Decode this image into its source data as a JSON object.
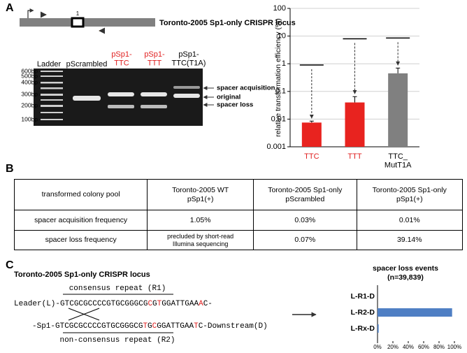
{
  "panel_labels": [
    "A",
    "B",
    "C"
  ],
  "locus": {
    "exon_label": "1",
    "title": "Toronto-2005 Sp1-only CRISPR locus"
  },
  "gel": {
    "ladder_label": "Ladder",
    "ladder_sizes": [
      "600bp",
      "500bp",
      "400bp",
      "300bp",
      "200bp",
      "100bp"
    ],
    "lanes": [
      "pScrambled",
      "pSp1-\nTTC",
      "pSp1-\nTTT",
      "pSp1-\nTTC(T1A)"
    ],
    "lane_colors": [
      "#000000",
      "#e02020",
      "#e02020",
      "#000000"
    ],
    "band_annotations": [
      "spacer acquisition",
      "original",
      "spacer loss"
    ]
  },
  "chart_data": [
    {
      "type": "bar",
      "ylabel": "relative transformation efficiency (%)",
      "categories": [
        "TTC",
        "TTT",
        "TTC_\nMutT1A"
      ],
      "category_colors": [
        "#e02020",
        "#e02020",
        "#000000"
      ],
      "values": [
        0.0075,
        0.04,
        0.45
      ],
      "errors": [
        0.001,
        0.025,
        0.25
      ],
      "colors": [
        "#e8231f",
        "#e8231f",
        "#808080"
      ],
      "reference_values": [
        0.9,
        8,
        8.5
      ],
      "log_scale": true,
      "ylim": [
        0.001,
        100
      ],
      "yticks": [
        0.001,
        0.01,
        0.1,
        1,
        10,
        100
      ],
      "grid": true
    },
    {
      "type": "hbar",
      "title": "spacer loss events",
      "subtitle": "(n=39,839)",
      "categories": [
        "L-R1-D",
        "L-R2-D",
        "L-Rx-D"
      ],
      "values": [
        0,
        97,
        1.5
      ],
      "color": "#4f7fc4",
      "xlim": [
        0,
        100
      ],
      "xticks": [
        {
          "value": 0,
          "label": "0%"
        },
        {
          "value": 20,
          "label": "20%"
        },
        {
          "value": 40,
          "label": "40%"
        },
        {
          "value": 60,
          "label": "60%"
        },
        {
          "value": 80,
          "label": "80%"
        },
        {
          "value": 100,
          "label": "100%"
        }
      ]
    }
  ],
  "table": {
    "header": [
      "transformed colony pool",
      "Toronto-2005 WT\npSp1(+)",
      "Toronto-2005 Sp1-only\npScrambled",
      "Toronto-2005 Sp1-only\npSp1(+)"
    ],
    "rows": [
      [
        "spacer acquisition frequency",
        "1.05%",
        "0.03%",
        "0.01%"
      ],
      [
        "spacer loss frequency",
        "precluded  by short-read\nIllumina sequencing",
        "0.07%",
        "39.14%"
      ]
    ]
  },
  "sequence": {
    "title": "Toronto-2005 Sp1-only CRISPR locus",
    "repeat1": "consensus repeat (R1)",
    "repeat2": "non-consensus repeat (R2)",
    "line1": [
      {
        "text": "Leader(L)-GTCGCGCCCCGTGCGGGCG",
        "color": "#000000"
      },
      {
        "text": "C",
        "color": "#e02020"
      },
      {
        "text": "G",
        "color": "#000000"
      },
      {
        "text": "T",
        "color": "#e02020"
      },
      {
        "text": "GGATTGAA",
        "color": "#000000"
      },
      {
        "text": "A",
        "color": "#e02020"
      },
      {
        "text": "C-",
        "color": "#000000"
      }
    ],
    "line2": [
      {
        "text": "-Sp1-GTCGCGCCCCGTGCGGGCG",
        "color": "#000000"
      },
      {
        "text": "T",
        "color": "#e02020"
      },
      {
        "text": "G",
        "color": "#000000"
      },
      {
        "text": "C",
        "color": "#e02020"
      },
      {
        "text": "GGATTGAA",
        "color": "#000000"
      },
      {
        "text": "T",
        "color": "#e02020"
      },
      {
        "text": "C-Downstream(D)",
        "color": "#000000"
      }
    ]
  }
}
